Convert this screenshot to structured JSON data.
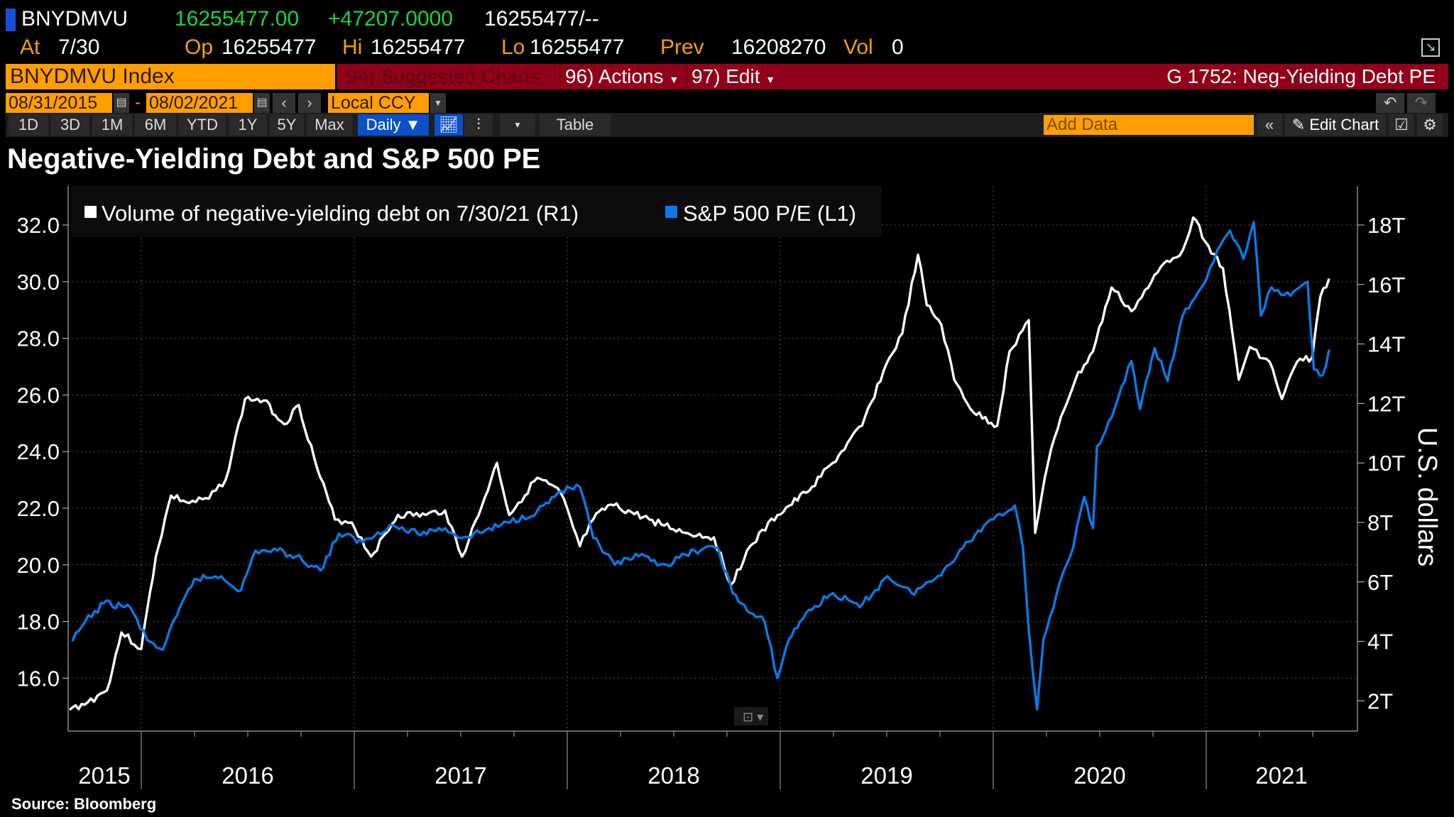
{
  "header": {
    "ticker": "BNYDMVU",
    "last": "16255477.00",
    "change": "+47207.0000",
    "bid_ask": "16255477/--",
    "at_label": "At",
    "at_value": "7/30",
    "open_label": "Op",
    "open_value": "16255477",
    "high_label": "Hi",
    "high_value": "16255477",
    "low_label": "Lo",
    "low_value": "16255477",
    "prev_label": "Prev",
    "prev_value": "16208270",
    "vol_label": "Vol",
    "vol_value": "0"
  },
  "toolbar": {
    "security": "BNYDMVU Index",
    "suggested": "94) Suggested Charts",
    "actions": "96) Actions",
    "edit": "97) Edit",
    "chart_id": "G 1752: Neg-Yielding Debt PE",
    "start_date": "08/31/2015",
    "date_sep": "-",
    "end_date": "08/02/2021",
    "currency": "Local CCY",
    "periods": [
      "1D",
      "3D",
      "1M",
      "6M",
      "YTD",
      "1Y",
      "5Y",
      "Max"
    ],
    "frequency": "Daily",
    "table": "Table",
    "add_data_placeholder": "Add Data",
    "edit_chart": "Edit Chart"
  },
  "colors": {
    "accent_orange": "#ff9e00",
    "bar_red": "#92001a",
    "series_blue": "#0a7ae6",
    "series_white": "#ffffff",
    "positive": "#1ed43c"
  },
  "chart_data": {
    "type": "line",
    "title": "Negative-Yielding Debt and S&P 500 PE",
    "source": "Source: Bloomberg",
    "legend_placement": "top-left",
    "grid": true,
    "x_tick_labels": [
      "2015",
      "2016",
      "2017",
      "2018",
      "2019",
      "2020",
      "2021"
    ],
    "xlim": [
      "2015-08-31",
      "2021-08-02"
    ],
    "left_axis": {
      "ylim": [
        15,
        33
      ],
      "ticks": [
        "32.0",
        "30.0",
        "28.0",
        "26.0",
        "24.0",
        "22.0",
        "20.0",
        "18.0",
        "16.0"
      ],
      "tick_values": [
        32,
        30,
        28,
        26,
        24,
        22,
        20,
        18,
        16
      ]
    },
    "right_axis": {
      "label": "U.S. dollars",
      "ylim_trillions": [
        1,
        19
      ],
      "ticks": [
        "18T",
        "16T",
        "14T",
        "12T",
        "10T",
        "8T",
        "6T",
        "4T",
        "2T"
      ],
      "tick_values": [
        18,
        16,
        14,
        12,
        10,
        8,
        6,
        4,
        2
      ]
    },
    "series": [
      {
        "name": "Volume of negative-yielding debt on 7/30/21 (R1)",
        "axis": "right",
        "unit": "T USD",
        "color": "#ffffff",
        "points": [
          [
            "2015-08-31",
            1.7
          ],
          [
            "2015-10-01",
            1.95
          ],
          [
            "2015-11-03",
            2.35
          ],
          [
            "2015-11-28",
            4.3
          ],
          [
            "2016-01-01",
            3.75
          ],
          [
            "2016-01-26",
            6.85
          ],
          [
            "2016-02-21",
            8.9
          ],
          [
            "2016-03-23",
            8.65
          ],
          [
            "2016-04-26",
            8.8
          ],
          [
            "2016-05-25",
            9.45
          ],
          [
            "2016-06-27",
            12.15
          ],
          [
            "2016-07-29",
            12.1
          ],
          [
            "2016-09-02",
            11.3
          ],
          [
            "2016-09-27",
            11.95
          ],
          [
            "2016-10-29",
            9.8
          ],
          [
            "2016-11-28",
            8.1
          ],
          [
            "2016-12-27",
            8.0
          ],
          [
            "2017-01-29",
            6.85
          ],
          [
            "2017-03-16",
            8.25
          ],
          [
            "2017-05-03",
            8.25
          ],
          [
            "2017-06-05",
            8.4
          ],
          [
            "2017-07-04",
            6.85
          ],
          [
            "2017-08-07",
            8.55
          ],
          [
            "2017-09-02",
            10.0
          ],
          [
            "2017-09-23",
            8.25
          ],
          [
            "2017-11-10",
            9.5
          ],
          [
            "2017-12-20",
            9.0
          ],
          [
            "2018-01-22",
            7.2
          ],
          [
            "2018-02-14",
            8.1
          ],
          [
            "2018-03-16",
            8.6
          ],
          [
            "2018-05-21",
            8.1
          ],
          [
            "2018-07-22",
            7.65
          ],
          [
            "2018-09-09",
            7.5
          ],
          [
            "2018-10-08",
            5.9
          ],
          [
            "2018-11-10",
            7.2
          ],
          [
            "2018-12-27",
            8.25
          ],
          [
            "2019-02-14",
            9.0
          ],
          [
            "2019-04-01",
            10.0
          ],
          [
            "2019-05-21",
            11.25
          ],
          [
            "2019-06-27",
            13.1
          ],
          [
            "2019-07-29",
            14.35
          ],
          [
            "2019-08-25",
            17.0
          ],
          [
            "2019-09-09",
            15.3
          ],
          [
            "2019-10-04",
            14.65
          ],
          [
            "2019-10-26",
            12.8
          ],
          [
            "2019-11-28",
            11.7
          ],
          [
            "2020-01-08",
            11.25
          ],
          [
            "2020-01-29",
            13.75
          ],
          [
            "2020-03-02",
            14.8
          ],
          [
            "2020-03-13",
            7.65
          ],
          [
            "2020-04-04",
            10.0
          ],
          [
            "2020-04-26",
            11.55
          ],
          [
            "2020-05-21",
            12.8
          ],
          [
            "2020-06-20",
            13.75
          ],
          [
            "2020-07-22",
            15.9
          ],
          [
            "2020-08-25",
            15.1
          ],
          [
            "2020-09-23",
            15.9
          ],
          [
            "2020-10-19",
            16.7
          ],
          [
            "2020-11-21",
            17.15
          ],
          [
            "2020-12-09",
            18.25
          ],
          [
            "2021-01-04",
            17.3
          ],
          [
            "2021-01-29",
            16.55
          ],
          [
            "2021-02-25",
            12.8
          ],
          [
            "2021-03-16",
            13.9
          ],
          [
            "2021-04-19",
            13.4
          ],
          [
            "2021-05-10",
            12.15
          ],
          [
            "2021-06-05",
            13.4
          ],
          [
            "2021-07-01",
            13.55
          ],
          [
            "2021-07-15",
            15.6
          ],
          [
            "2021-07-30",
            16.2
          ]
        ]
      },
      {
        "name": "S&P 500 P/E (L1)",
        "axis": "left",
        "color": "#0a7ae6",
        "points": [
          [
            "2015-09-05",
            17.3
          ],
          [
            "2015-09-27",
            18.0
          ],
          [
            "2015-10-29",
            18.65
          ],
          [
            "2015-12-13",
            18.5
          ],
          [
            "2016-01-11",
            17.35
          ],
          [
            "2016-02-07",
            17.0
          ],
          [
            "2016-03-02",
            18.2
          ],
          [
            "2016-04-01",
            19.5
          ],
          [
            "2016-05-17",
            19.6
          ],
          [
            "2016-06-20",
            19.1
          ],
          [
            "2016-07-15",
            20.5
          ],
          [
            "2016-08-21",
            20.5
          ],
          [
            "2016-09-23",
            20.3
          ],
          [
            "2016-11-03",
            19.8
          ],
          [
            "2016-12-05",
            21.1
          ],
          [
            "2017-01-15",
            20.8
          ],
          [
            "2017-03-02",
            21.4
          ],
          [
            "2017-04-19",
            21.1
          ],
          [
            "2017-06-05",
            21.3
          ],
          [
            "2017-07-04",
            20.95
          ],
          [
            "2017-09-09",
            21.4
          ],
          [
            "2017-11-10",
            21.9
          ],
          [
            "2017-12-20",
            22.6
          ],
          [
            "2018-01-22",
            22.75
          ],
          [
            "2018-02-14",
            20.95
          ],
          [
            "2018-03-23",
            20.0
          ],
          [
            "2018-05-03",
            20.3
          ],
          [
            "2018-06-20",
            20.0
          ],
          [
            "2018-08-07",
            20.5
          ],
          [
            "2018-09-16",
            20.6
          ],
          [
            "2018-10-11",
            19.0
          ],
          [
            "2018-11-10",
            18.3
          ],
          [
            "2018-12-05",
            18.0
          ],
          [
            "2018-12-27",
            16.0
          ],
          [
            "2019-01-15",
            17.35
          ],
          [
            "2019-02-14",
            18.3
          ],
          [
            "2019-04-01",
            19.0
          ],
          [
            "2019-05-17",
            18.5
          ],
          [
            "2019-07-04",
            19.6
          ],
          [
            "2019-08-14",
            19.0
          ],
          [
            "2019-09-23",
            19.5
          ],
          [
            "2019-11-10",
            20.6
          ],
          [
            "2019-12-27",
            21.6
          ],
          [
            "2020-02-07",
            22.1
          ],
          [
            "2020-02-21",
            20.6
          ],
          [
            "2020-03-02",
            17.7
          ],
          [
            "2020-03-16",
            14.9
          ],
          [
            "2020-03-27",
            17.35
          ],
          [
            "2020-04-19",
            19.0
          ],
          [
            "2020-05-17",
            20.6
          ],
          [
            "2020-06-05",
            22.4
          ],
          [
            "2020-06-20",
            21.3
          ],
          [
            "2020-06-27",
            24.2
          ],
          [
            "2020-07-22",
            25.2
          ],
          [
            "2020-08-25",
            27.2
          ],
          [
            "2020-09-09",
            25.5
          ],
          [
            "2020-10-04",
            27.65
          ],
          [
            "2020-10-26",
            26.5
          ],
          [
            "2020-11-21",
            28.8
          ],
          [
            "2021-01-01",
            30.1
          ],
          [
            "2021-01-19",
            31.1
          ],
          [
            "2021-02-10",
            31.8
          ],
          [
            "2021-03-05",
            30.8
          ],
          [
            "2021-03-23",
            32.1
          ],
          [
            "2021-04-04",
            28.8
          ],
          [
            "2021-04-22",
            29.8
          ],
          [
            "2021-05-25",
            29.5
          ],
          [
            "2021-06-23",
            30.0
          ],
          [
            "2021-07-04",
            26.9
          ],
          [
            "2021-07-19",
            26.7
          ],
          [
            "2021-07-30",
            27.6
          ]
        ]
      }
    ]
  }
}
